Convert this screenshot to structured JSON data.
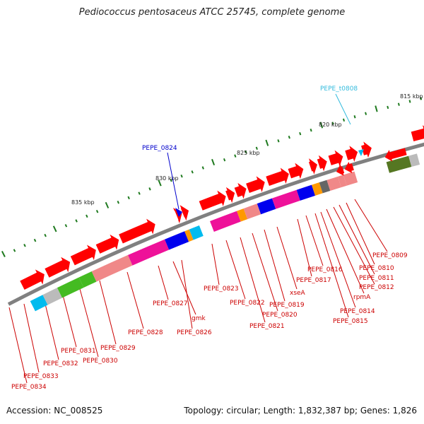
{
  "title": "Pediococcus pentosaceus ATCC 25745, complete genome",
  "footer": {
    "accession": "Accession: NC_008525",
    "summary": "Topology: circular; Length: 1,832,387 bp; Genes: 1,826"
  },
  "colors": {
    "backbone": "#808080",
    "gene_default": "#ff0000",
    "label_red": "#cc0000",
    "label_blue": "#0000cc",
    "label_cyan": "#33bbdd",
    "tick": "#1f7a1f",
    "cog_blue": "#0000ee",
    "cog_magenta": "#ee1199",
    "cog_salmon": "#f08888",
    "cog_orange": "#ff9900",
    "cog_cyan": "#00bbee",
    "cog_green": "#44bb22",
    "cog_olive": "#557722",
    "cog_grey": "#bbbbbb",
    "cog_darkgrey": "#666666"
  },
  "scale_labels": [
    "815 kbp",
    "820 kbp",
    "825 kbp",
    "830 kbp",
    "835 kbp"
  ],
  "feature_labels": [
    {
      "name": "PEPE_t0808",
      "color": "cyan"
    },
    {
      "name": "PEPE_0824",
      "color": "blue"
    },
    {
      "name": "PEPE_0809",
      "color": "red"
    },
    {
      "name": "PEPE_0810",
      "color": "red"
    },
    {
      "name": "PEPE_0811",
      "color": "red"
    },
    {
      "name": "PEPE_0812",
      "color": "red"
    },
    {
      "name": "rpmA",
      "color": "red"
    },
    {
      "name": "PEPE_0814",
      "color": "red"
    },
    {
      "name": "PEPE_0815",
      "color": "red"
    },
    {
      "name": "PEPE_0816",
      "color": "red"
    },
    {
      "name": "PEPE_0817",
      "color": "red"
    },
    {
      "name": "xseA",
      "color": "red"
    },
    {
      "name": "PEPE_0819",
      "color": "red"
    },
    {
      "name": "PEPE_0820",
      "color": "red"
    },
    {
      "name": "PEPE_0821",
      "color": "red"
    },
    {
      "name": "PEPE_0822",
      "color": "red"
    },
    {
      "name": "PEPE_0823",
      "color": "red"
    },
    {
      "name": "PEPE_0826",
      "color": "red"
    },
    {
      "name": "gmk",
      "color": "red"
    },
    {
      "name": "PEPE_0827",
      "color": "red"
    },
    {
      "name": "PEPE_0828",
      "color": "red"
    },
    {
      "name": "PEPE_0829",
      "color": "red"
    },
    {
      "name": "PEPE_0830",
      "color": "red"
    },
    {
      "name": "PEPE_0831",
      "color": "red"
    },
    {
      "name": "PEPE_0832",
      "color": "red"
    },
    {
      "name": "PEPE_0833",
      "color": "red"
    },
    {
      "name": "PEPE_0834",
      "color": "red"
    }
  ]
}
